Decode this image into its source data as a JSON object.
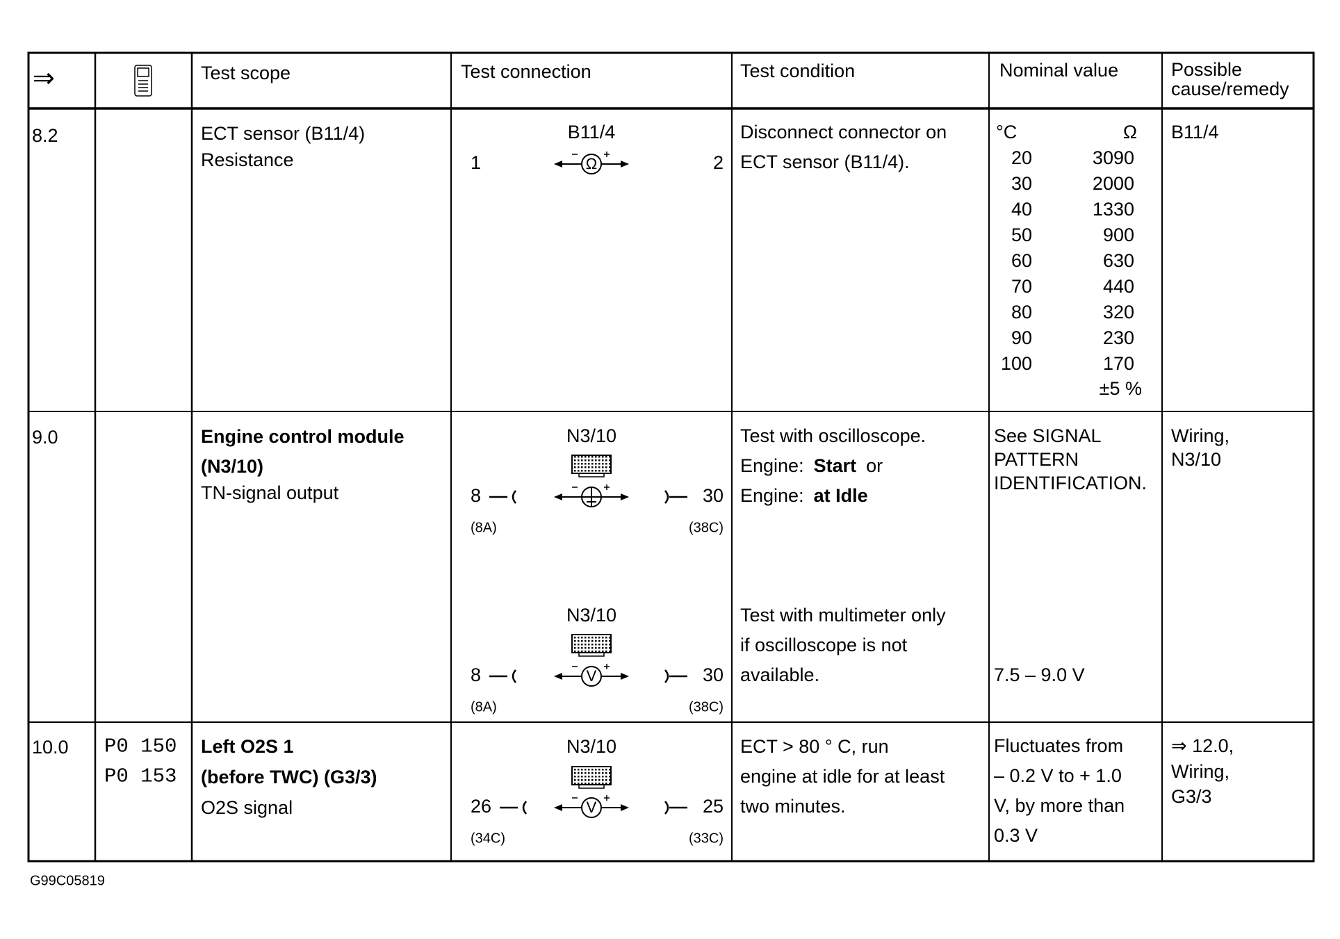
{
  "header": {
    "arrow": "⇒",
    "scope": "Test scope",
    "connection": "Test connection",
    "condition": "Test condition",
    "nominal": "Nominal value",
    "remedy": [
      "Possible",
      "cause/remedy"
    ]
  },
  "rows": [
    {
      "step": "8.2",
      "scope": [
        "ECT sensor (B11/4)",
        "Resistance"
      ],
      "connections": [
        {
          "component": "B11/4",
          "pin_a": "1",
          "pin_b": "2",
          "meter": "Ω"
        }
      ],
      "condition": [
        "Disconnect connector on",
        "ECT sensor (B11/4)."
      ],
      "nominal_table": {
        "units": [
          "°C",
          "Ω"
        ],
        "rows": [
          [
            20,
            3090
          ],
          [
            30,
            2000
          ],
          [
            40,
            1330
          ],
          [
            50,
            900
          ],
          [
            60,
            630
          ],
          [
            70,
            440
          ],
          [
            80,
            320
          ],
          [
            90,
            230
          ],
          [
            100,
            170
          ]
        ],
        "tolerance": "±5 %"
      },
      "remedy": [
        "B11/4"
      ]
    },
    {
      "step": "9.0",
      "scope_bold": [
        "Engine control module",
        "(N3/10)"
      ],
      "scope": [
        "TN-signal output"
      ],
      "connections": [
        {
          "component": "N3/10",
          "pin_a": "8",
          "pin_b": "30",
          "sub_a": "(8A)",
          "sub_b": "(38C)"
        },
        {
          "component": "N3/10",
          "pin_a": "8",
          "pin_b": "30",
          "sub_a": "(8A)",
          "sub_b": "(38C)",
          "meter": "V"
        }
      ],
      "condition": [
        "Test with oscilloscope.",
        [
          "Engine:",
          "Start",
          "or"
        ],
        [
          "Engine:",
          "at Idle"
        ]
      ],
      "condition_2": [
        "Test with multimeter only",
        "if oscilloscope is not",
        "available."
      ],
      "nominal": [
        "See SIGNAL",
        "PATTERN",
        "IDENTIFICATION."
      ],
      "nominal_2": "7.5 – 9.0 V",
      "remedy": [
        "Wiring,",
        "N3/10"
      ]
    },
    {
      "step": "10.0",
      "codes": [
        "P0 150",
        "P0 153"
      ],
      "scope_bold": [
        "Left O2S 1",
        "(before TWC) (G3/3)"
      ],
      "scope": [
        "O2S signal"
      ],
      "connections": [
        {
          "component": "N3/10",
          "pin_a": "26",
          "pin_b": "25",
          "sub_a": "(34C)",
          "sub_b": "(33C)",
          "meter": "V"
        }
      ],
      "condition": [
        "ECT > 80 ° C, run",
        "engine at idle for at least",
        "two minutes."
      ],
      "nominal": [
        "Fluctuates from",
        "– 0.2 V to + 1.0",
        "V, by more than",
        "0.3 V"
      ],
      "remedy": [
        "⇒ 12.0,",
        "Wiring,",
        "G3/3"
      ]
    }
  ],
  "footer": {
    "code": "G99C05819"
  }
}
